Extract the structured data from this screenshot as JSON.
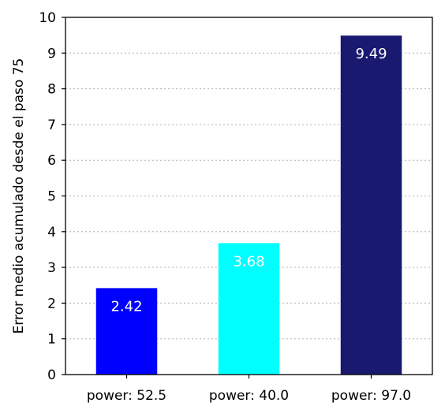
{
  "chart_data": {
    "type": "bar",
    "categories": [
      "power: 52.5",
      "power: 40.0",
      "power: 97.0"
    ],
    "values": [
      2.42,
      3.68,
      9.49
    ],
    "value_labels": [
      "2.42",
      "3.68",
      "9.49"
    ],
    "colors": [
      "#0000ff",
      "#00ffff",
      "#191970"
    ],
    "title": "",
    "xlabel": "",
    "ylabel": "Error medio acumulado desde el paso 75",
    "ylim": [
      0,
      10
    ],
    "yticks": [
      0,
      1,
      2,
      3,
      4,
      5,
      6,
      7,
      8,
      9,
      10
    ],
    "grid": "y dotted",
    "legend": "none"
  }
}
